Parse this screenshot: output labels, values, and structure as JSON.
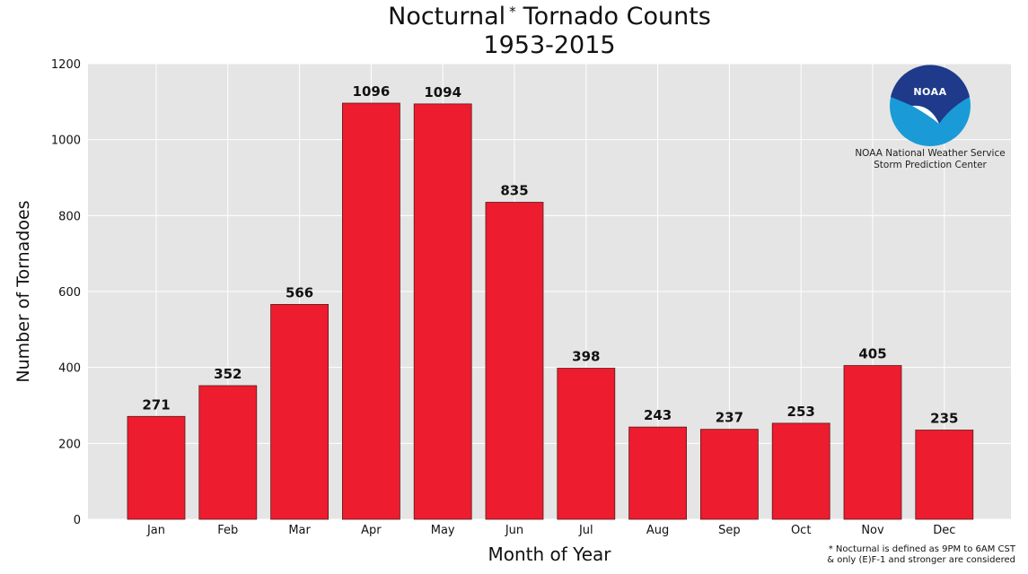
{
  "chart_data": {
    "type": "bar",
    "title": "Nocturnal",
    "title_mark": "*",
    "title_rest": "Tornado Counts",
    "subtitle": "1953-2015",
    "xlabel": "Month of Year",
    "ylabel": "Number of Tornadoes",
    "categories": [
      "Jan",
      "Feb",
      "Mar",
      "Apr",
      "May",
      "Jun",
      "Jul",
      "Aug",
      "Sep",
      "Oct",
      "Nov",
      "Dec"
    ],
    "values": [
      271,
      352,
      566,
      1096,
      1094,
      835,
      398,
      243,
      237,
      253,
      405,
      235
    ],
    "data_labels": [
      "271",
      "352",
      "566",
      "1096",
      "1094",
      "835",
      "398",
      "243",
      "237",
      "253",
      "405",
      "235"
    ],
    "ylim": [
      0,
      1200
    ],
    "yticks": [
      0,
      200,
      400,
      600,
      800,
      1000,
      1200
    ],
    "ytick_labels": [
      "0",
      "200",
      "400",
      "600",
      "800",
      "1000",
      "1200"
    ],
    "grid": true,
    "bar_color": "#ed1c2e",
    "background_color": "#e5e5e5",
    "grid_color": "#ffffff"
  },
  "branding": {
    "logo_text": "NOAA",
    "org_line1": "NOAA National Weather Service",
    "org_line2": "Storm Prediction Center",
    "logo_colors": {
      "blue": "#1a9bd7",
      "navy": "#1f3a8a"
    }
  },
  "footnote": {
    "line1": "* Nocturnal is defined as 9PM to 6AM CST",
    "line2": "& only (E)F-1 and stronger are considered"
  }
}
